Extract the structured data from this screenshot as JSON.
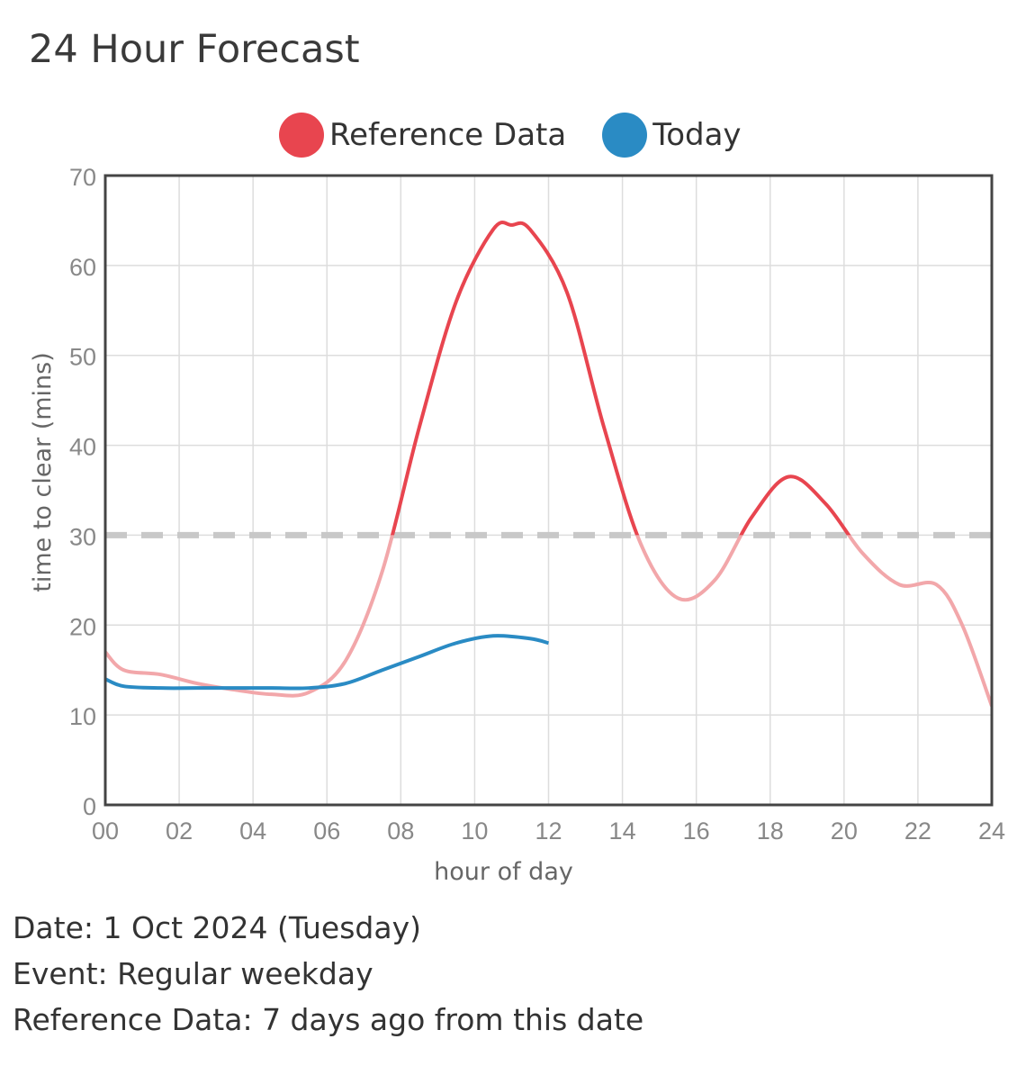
{
  "page_title": "24 Hour Forecast",
  "legend": {
    "reference_label": "Reference Data",
    "today_label": "Today"
  },
  "colors": {
    "reference": "#e8454f",
    "reference_light": "#f2a7aa",
    "today": "#2a8bc4",
    "threshold": "#c8c8c8",
    "grid": "#dddddd",
    "axis": "#444444"
  },
  "chart_data": {
    "type": "line",
    "xlabel": "hour of day",
    "ylabel": "time to clear (mins)",
    "xlim": [
      0,
      24
    ],
    "ylim": [
      0,
      70
    ],
    "x_ticks": [
      "00",
      "02",
      "04",
      "06",
      "08",
      "10",
      "12",
      "14",
      "16",
      "18",
      "20",
      "22",
      "24"
    ],
    "y_ticks": [
      "0",
      "10",
      "20",
      "30",
      "40",
      "50",
      "60",
      "70"
    ],
    "threshold": 30,
    "grid": true,
    "legend_position": "top-center",
    "series": [
      {
        "name": "Reference Data",
        "x": [
          0,
          0.5,
          1.5,
          2.5,
          3.5,
          4.5,
          5.5,
          6.5,
          7.5,
          8.5,
          9.5,
          10.5,
          11,
          11.5,
          12.5,
          13.5,
          14.5,
          15.5,
          16.5,
          17.5,
          18.5,
          19.5,
          20.5,
          21.5,
          22.5,
          23.2,
          24
        ],
        "y": [
          17,
          15,
          14.5,
          13.5,
          12.8,
          12.3,
          12.5,
          16,
          26,
          42,
          56,
          64,
          64.5,
          64,
          57,
          42,
          29,
          23,
          25,
          32,
          36.5,
          33.5,
          28,
          24.5,
          24.5,
          20,
          11
        ]
      },
      {
        "name": "Today",
        "x": [
          0,
          0.5,
          1.5,
          2.5,
          3.5,
          4.5,
          5.5,
          6.5,
          7.5,
          8.5,
          9.5,
          10.5,
          11.5,
          12
        ],
        "y": [
          14,
          13.2,
          13,
          13,
          13,
          13,
          13,
          13.5,
          15,
          16.5,
          18,
          18.8,
          18.5,
          18
        ]
      }
    ]
  },
  "info": {
    "date": "Date: 1 Oct 2024 (Tuesday)",
    "event": "Event: Regular weekday",
    "reference": "Reference Data: 7 days ago from this date"
  }
}
